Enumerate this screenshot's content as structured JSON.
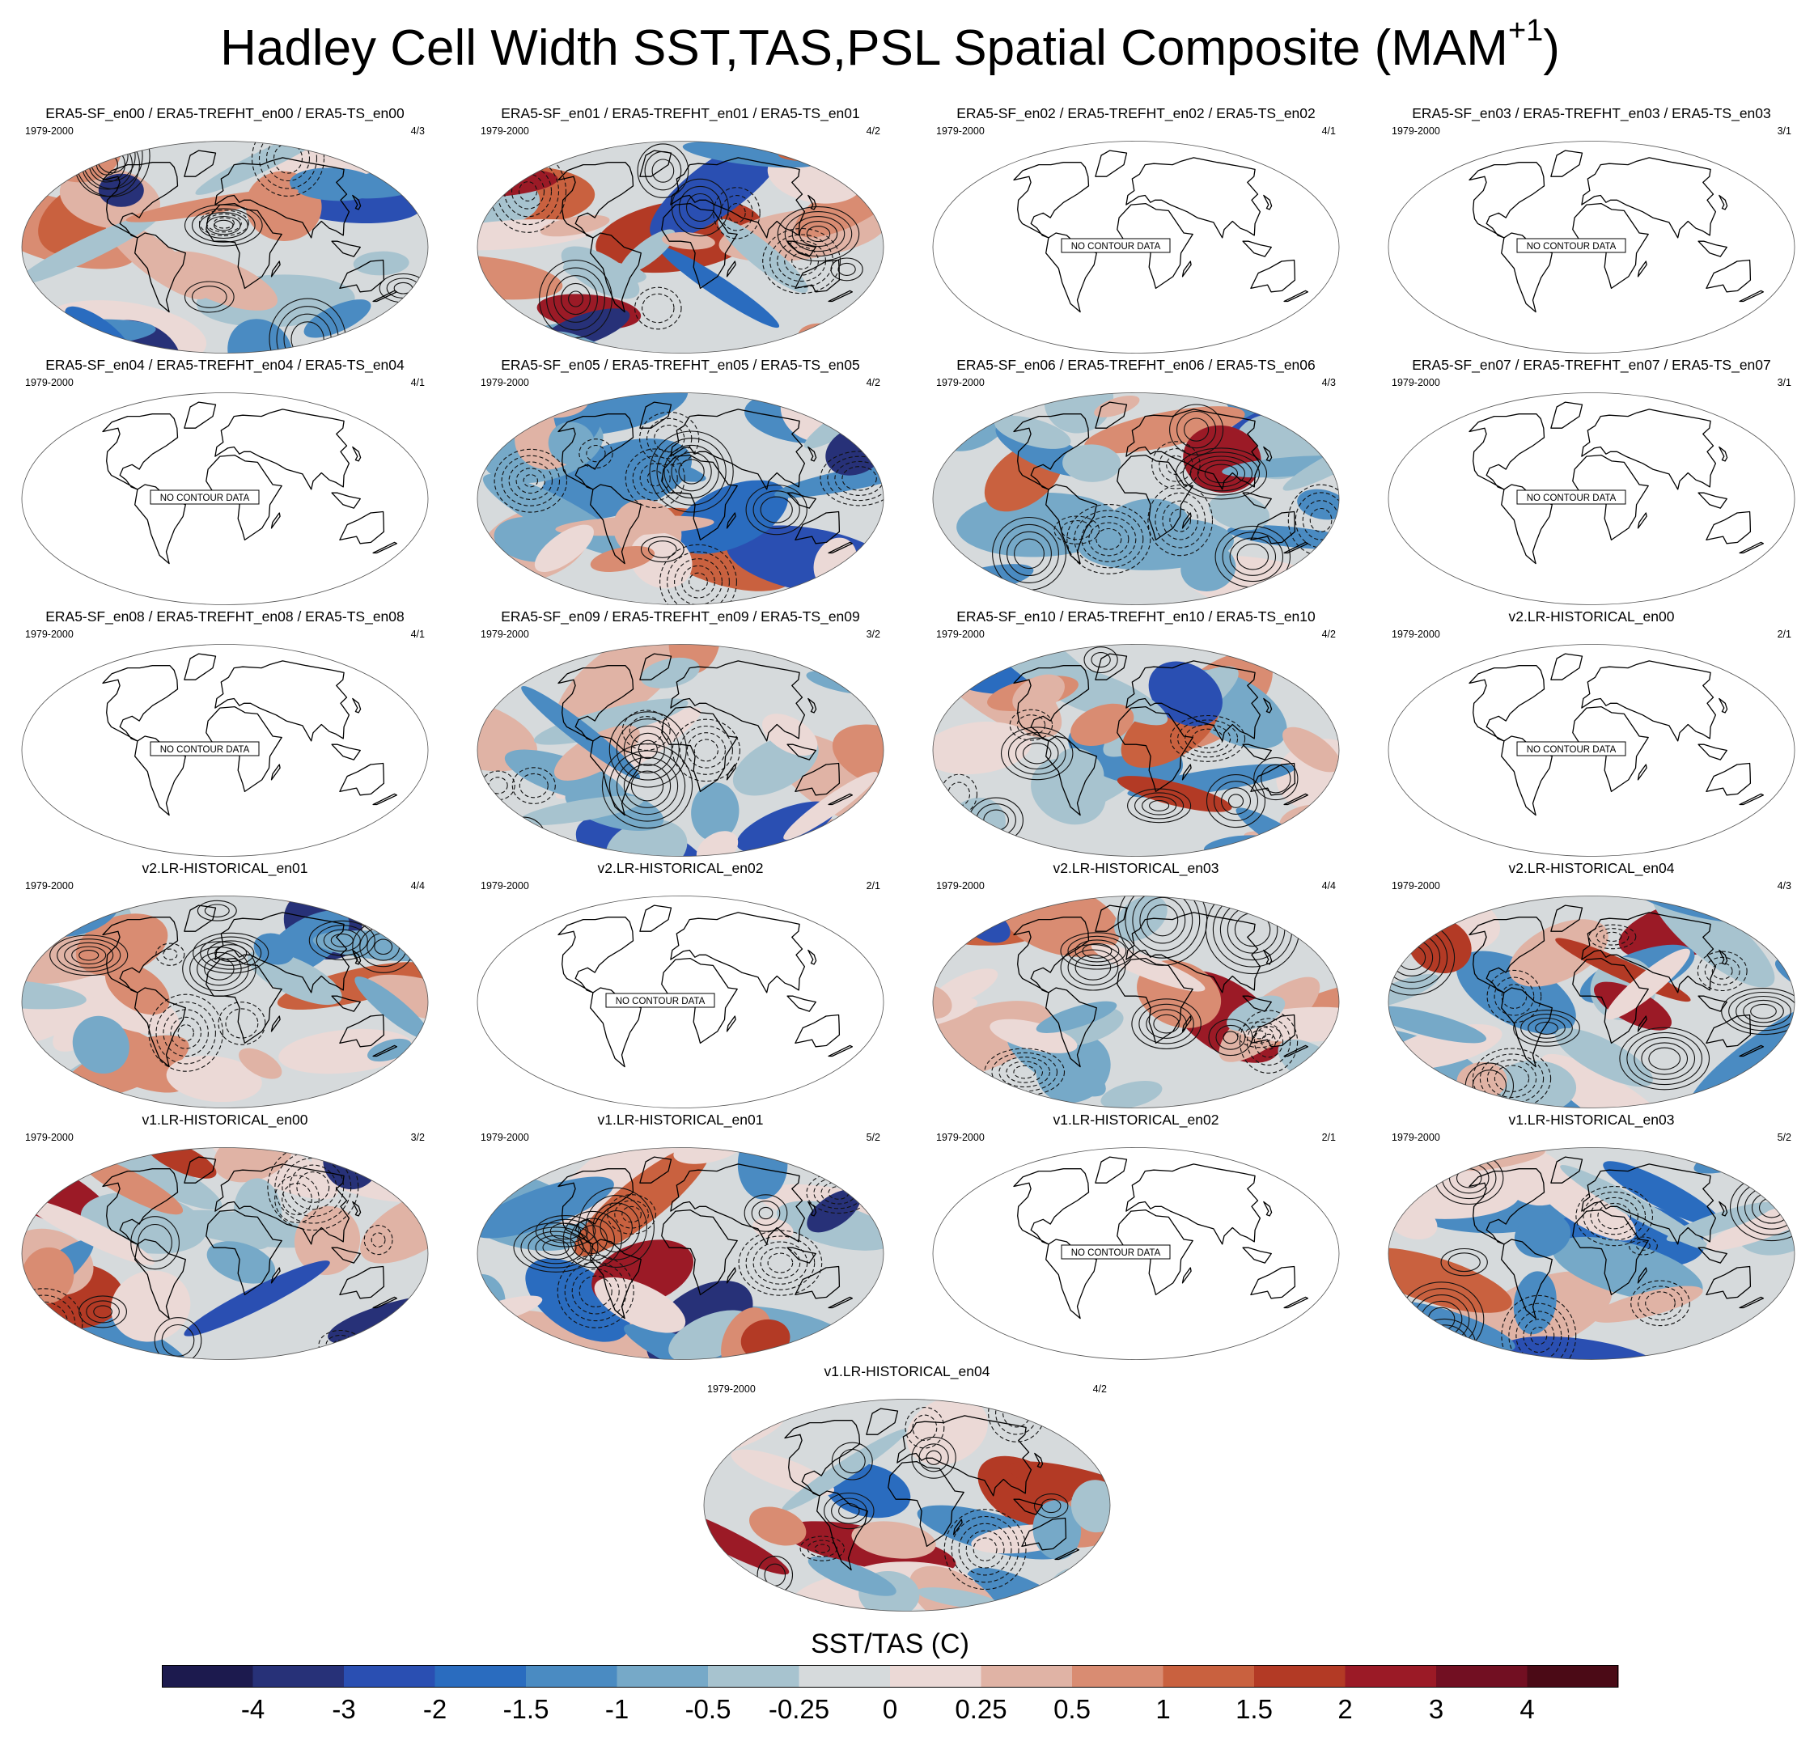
{
  "title": "Hadley Cell Width SST,TAS,PSL Spatial Composite (MAM",
  "title_sup": "+1",
  "title_close": ")",
  "no_data_text": "NO CONTOUR DATA",
  "panels": [
    {
      "title": "ERA5-SF_en00 / ERA5-TREFHT_en00 / ERA5-TS_en00",
      "period": "1979-2000",
      "count": "4/3",
      "has_data": true
    },
    {
      "title": "ERA5-SF_en01 / ERA5-TREFHT_en01 / ERA5-TS_en01",
      "period": "1979-2000",
      "count": "4/2",
      "has_data": true
    },
    {
      "title": "ERA5-SF_en02 / ERA5-TREFHT_en02 / ERA5-TS_en02",
      "period": "1979-2000",
      "count": "4/1",
      "has_data": false
    },
    {
      "title": "ERA5-SF_en03 / ERA5-TREFHT_en03 / ERA5-TS_en03",
      "period": "1979-2000",
      "count": "3/1",
      "has_data": false
    },
    {
      "title": "ERA5-SF_en04 / ERA5-TREFHT_en04 / ERA5-TS_en04",
      "period": "1979-2000",
      "count": "4/1",
      "has_data": false
    },
    {
      "title": "ERA5-SF_en05 / ERA5-TREFHT_en05 / ERA5-TS_en05",
      "period": "1979-2000",
      "count": "4/2",
      "has_data": true
    },
    {
      "title": "ERA5-SF_en06 / ERA5-TREFHT_en06 / ERA5-TS_en06",
      "period": "1979-2000",
      "count": "4/3",
      "has_data": true
    },
    {
      "title": "ERA5-SF_en07 / ERA5-TREFHT_en07 / ERA5-TS_en07",
      "period": "1979-2000",
      "count": "3/1",
      "has_data": false
    },
    {
      "title": "ERA5-SF_en08 / ERA5-TREFHT_en08 / ERA5-TS_en08",
      "period": "1979-2000",
      "count": "4/1",
      "has_data": false
    },
    {
      "title": "ERA5-SF_en09 / ERA5-TREFHT_en09 / ERA5-TS_en09",
      "period": "1979-2000",
      "count": "3/2",
      "has_data": true
    },
    {
      "title": "ERA5-SF_en10 / ERA5-TREFHT_en10 / ERA5-TS_en10",
      "period": "1979-2000",
      "count": "4/2",
      "has_data": true
    },
    {
      "title": "v2.LR-HISTORICAL_en00",
      "period": "1979-2000",
      "count": "2/1",
      "has_data": false
    },
    {
      "title": "v2.LR-HISTORICAL_en01",
      "period": "1979-2000",
      "count": "4/4",
      "has_data": true
    },
    {
      "title": "v2.LR-HISTORICAL_en02",
      "period": "1979-2000",
      "count": "2/1",
      "has_data": false
    },
    {
      "title": "v2.LR-HISTORICAL_en03",
      "period": "1979-2000",
      "count": "4/4",
      "has_data": true
    },
    {
      "title": "v2.LR-HISTORICAL_en04",
      "period": "1979-2000",
      "count": "4/3",
      "has_data": true
    },
    {
      "title": "v1.LR-HISTORICAL_en00",
      "period": "1979-2000",
      "count": "3/2",
      "has_data": true
    },
    {
      "title": "v1.LR-HISTORICAL_en01",
      "period": "1979-2000",
      "count": "5/2",
      "has_data": true
    },
    {
      "title": "v1.LR-HISTORICAL_en02",
      "period": "1979-2000",
      "count": "2/1",
      "has_data": false
    },
    {
      "title": "v1.LR-HISTORICAL_en03",
      "period": "1979-2000",
      "count": "5/2",
      "has_data": true
    },
    {
      "title": "v1.LR-HISTORICAL_en04",
      "period": "1979-2000",
      "count": "4/2",
      "has_data": true
    }
  ],
  "chart_data": {
    "type": "heatmap",
    "projection": "robinson",
    "colorbar": {
      "title": "SST/TAS (C)",
      "levels": [
        -4,
        -3,
        -2,
        -1.5,
        -1,
        -0.5,
        -0.25,
        0,
        0.25,
        0.5,
        1,
        1.5,
        2,
        3,
        4
      ],
      "labels": [
        "-4",
        "-3",
        "-2",
        "-1.5",
        "-1",
        "-0.5",
        "-0.25",
        "0",
        "0.25",
        "0.5",
        "1",
        "1.5",
        "2",
        "3",
        "4"
      ],
      "colors": [
        "#1c1a4e",
        "#273178",
        "#2a4fb2",
        "#2a6cbf",
        "#4a8bc2",
        "#76a9c8",
        "#a7c3cf",
        "#d6dadc",
        "#ebd9d6",
        "#e0b3a5",
        "#d98c72",
        "#c9613f",
        "#b33a25",
        "#9b1a26",
        "#720f22",
        "#4b0a16"
      ]
    }
  }
}
